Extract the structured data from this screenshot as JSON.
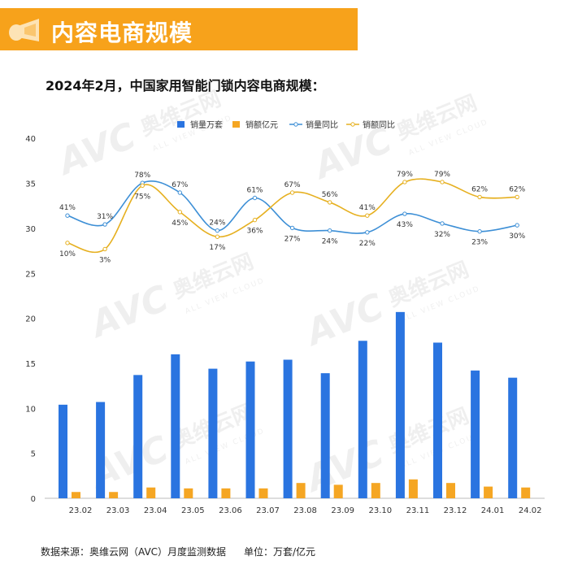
{
  "header": {
    "title": "内容电商规模"
  },
  "subtitle": "2024年2月，中国家用智能门锁内容电商规模：",
  "footer": {
    "source": "数据来源：奥维云网（AVC）月度监测数据",
    "unit": "单位：万套/亿元"
  },
  "watermark": {
    "main": "AVC",
    "cn": "奥维云网",
    "en": "ALL VIEW CLOUD"
  },
  "colors": {
    "banner": "#f7a21b",
    "volume": "#2a74e0",
    "sales": "#f5a623"
  },
  "chart_data": {
    "type": "bar+line",
    "categories": [
      "23.02",
      "23.03",
      "23.04",
      "23.05",
      "23.06",
      "23.07",
      "23.08",
      "23.09",
      "23.10",
      "23.11",
      "23.12",
      "24.01",
      "24.02"
    ],
    "y_ticks": [
      "40",
      "35",
      "30",
      "25",
      "20",
      "15",
      "10",
      "5",
      "0"
    ],
    "lower_axis_range": [
      0,
      20
    ],
    "upper_axis_range": [
      25,
      40
    ],
    "legend_position": "top",
    "series": [
      {
        "name": "销量万套",
        "kind": "bar",
        "color": "#2a74e0",
        "values": [
          10.4,
          10.7,
          13.7,
          16.0,
          14.4,
          15.2,
          15.4,
          13.9,
          17.5,
          20.7,
          17.3,
          14.2,
          13.4
        ]
      },
      {
        "name": "销额亿元",
        "kind": "bar",
        "color": "#f5a623",
        "values": [
          0.7,
          0.7,
          1.2,
          1.1,
          1.1,
          1.1,
          1.7,
          1.5,
          1.7,
          2.1,
          1.7,
          1.3,
          1.2
        ]
      },
      {
        "name": "销量同比",
        "kind": "line",
        "color": "#3d8fd6",
        "values": [
          41,
          31,
          78,
          67,
          24,
          61,
          27,
          24,
          22,
          43,
          32,
          23,
          30
        ],
        "labels": [
          "41%",
          "31%",
          "78%",
          "67%",
          "24%",
          "61%",
          "27%",
          "24%",
          "22%",
          "43%",
          "32%",
          "23%",
          "30%"
        ]
      },
      {
        "name": "销额同比",
        "kind": "line",
        "color": "#e6b020",
        "values": [
          10,
          3,
          75,
          45,
          17,
          36,
          67,
          56,
          41,
          79,
          79,
          62,
          62
        ],
        "labels": [
          "10%",
          "3%",
          "75%",
          "45%",
          "17%",
          "36%",
          "67%",
          "56%",
          "41%",
          "79%",
          "79%",
          "62%",
          "62%"
        ]
      }
    ]
  }
}
